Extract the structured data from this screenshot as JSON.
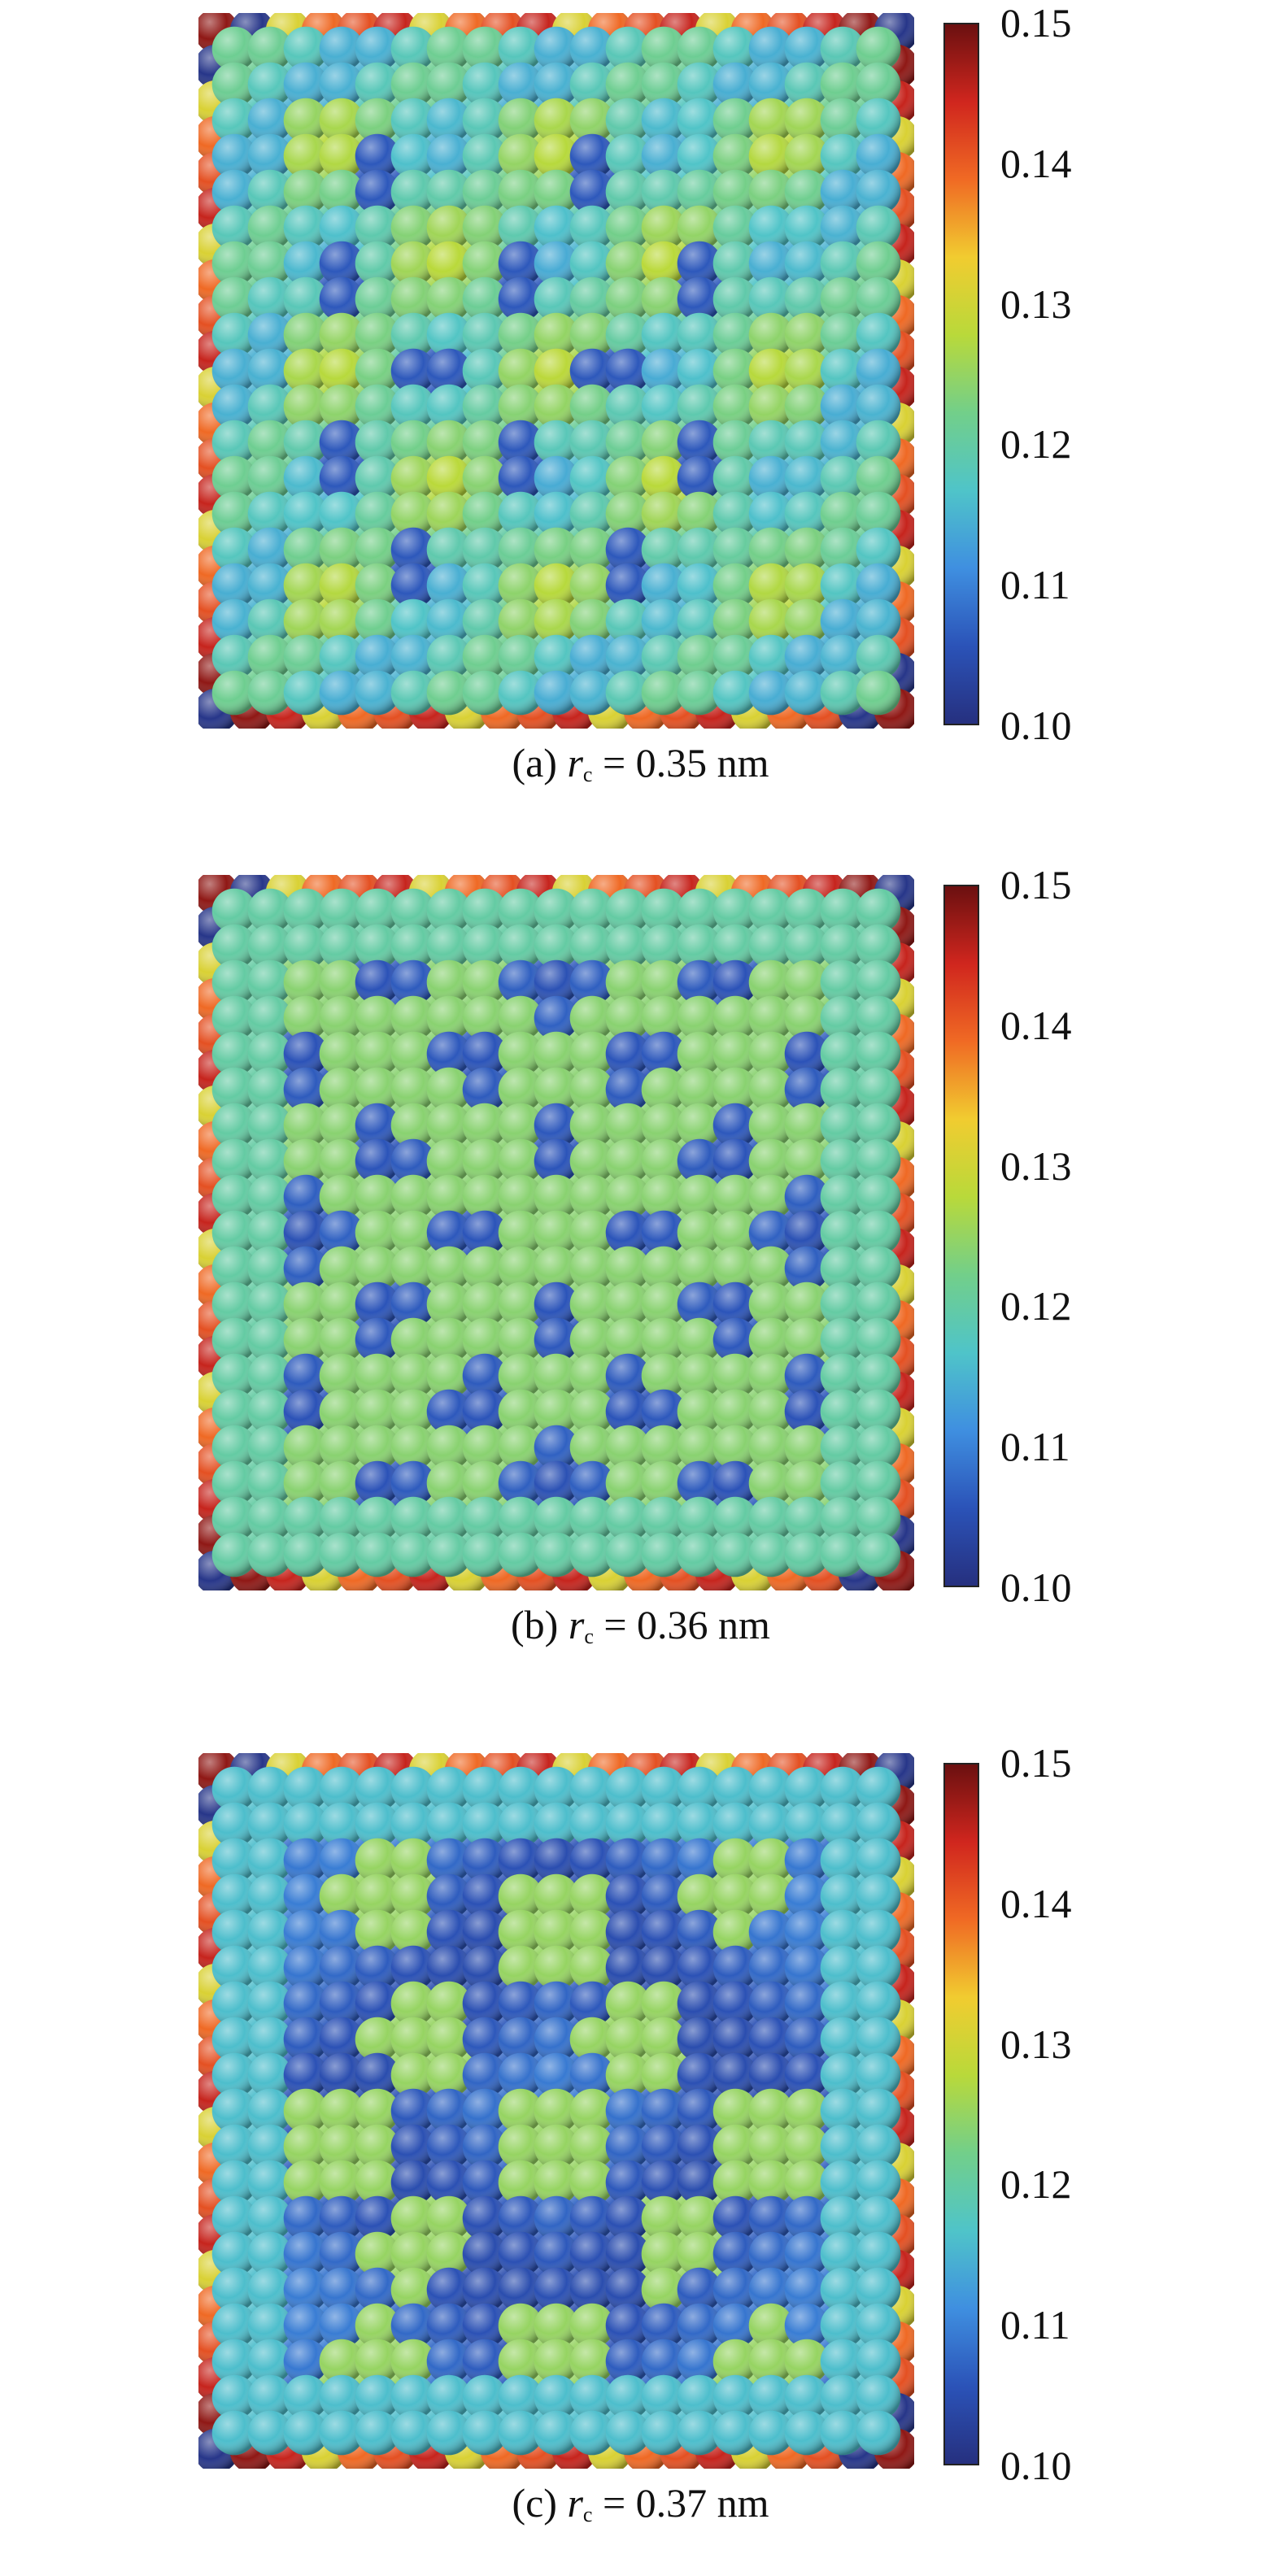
{
  "colors": {
    "colormap": [
      "#26307f",
      "#2b53b8",
      "#3f8fe0",
      "#4fc4c9",
      "#72cf8a",
      "#b9d93a",
      "#f1cc30",
      "#f06a24",
      "#d0261e",
      "#6b1010"
    ]
  },
  "colorbar": {
    "ticks": [
      "0.15",
      "0.14",
      "0.13",
      "0.12",
      "0.11",
      "0.10"
    ],
    "min": 0.1,
    "max": 0.15
  },
  "panels": [
    {
      "label": "(a)",
      "var": "r",
      "sub": "c",
      "eq": "= 0.35 nm",
      "pattern": "a"
    },
    {
      "label": "(b)",
      "var": "r",
      "sub": "c",
      "eq": "= 0.36 nm",
      "pattern": "b"
    },
    {
      "label": "(c)",
      "var": "r",
      "sub": "c",
      "eq": "= 0.37 nm",
      "pattern": "c"
    }
  ]
}
